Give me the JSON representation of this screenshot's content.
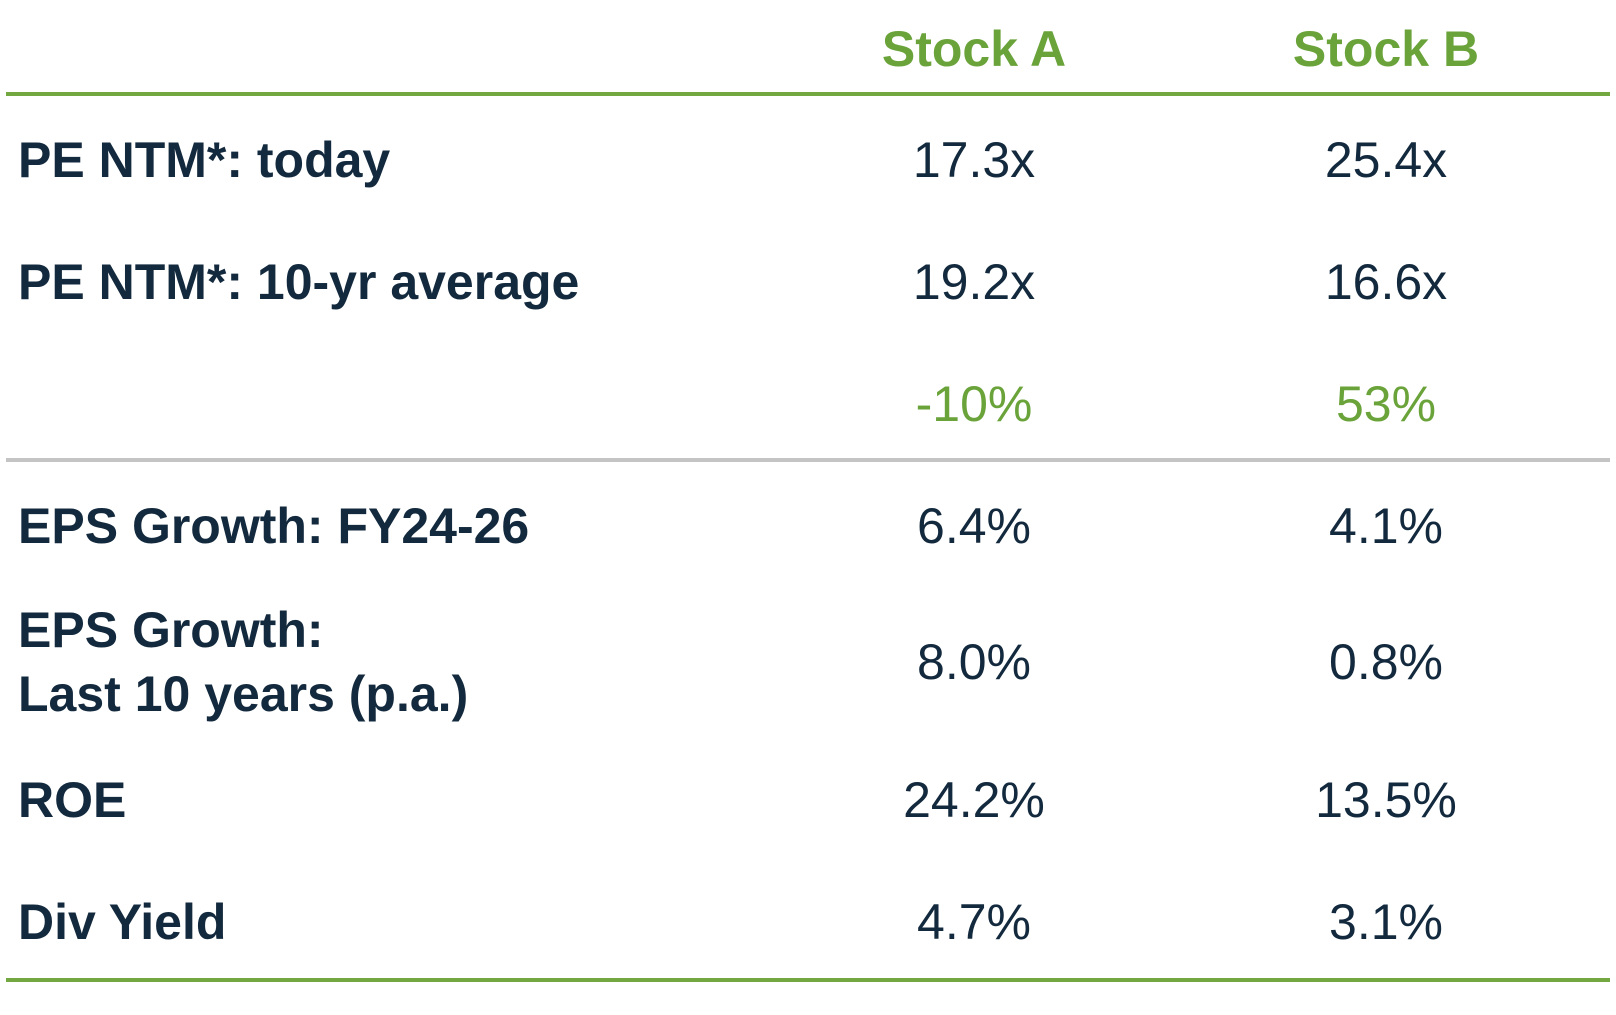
{
  "columns": {
    "a": "Stock A",
    "b": "Stock B"
  },
  "rows": [
    {
      "label": "PE NTM*: today",
      "a": "17.3x",
      "b": "25.4x"
    },
    {
      "label": "PE NTM*: 10-yr average",
      "a": "19.2x",
      "b": "16.6x"
    },
    {
      "label": "",
      "a": "-10%",
      "b": "53%"
    },
    {
      "label": "EPS Growth: FY24-26",
      "a": "6.4%",
      "b": "4.1%"
    },
    {
      "label_line1": "EPS Growth:",
      "label_line2": "Last 10 years (p.a.)",
      "a": "8.0%",
      "b": "0.8%"
    },
    {
      "label": "ROE",
      "a": "24.2%",
      "b": "13.5%"
    },
    {
      "label": "Div Yield",
      "a": "4.7%",
      "b": "3.1%"
    }
  ],
  "colors": {
    "accent": "#6aa33a",
    "text": "#13293d",
    "divider": "#c4c4c4"
  }
}
